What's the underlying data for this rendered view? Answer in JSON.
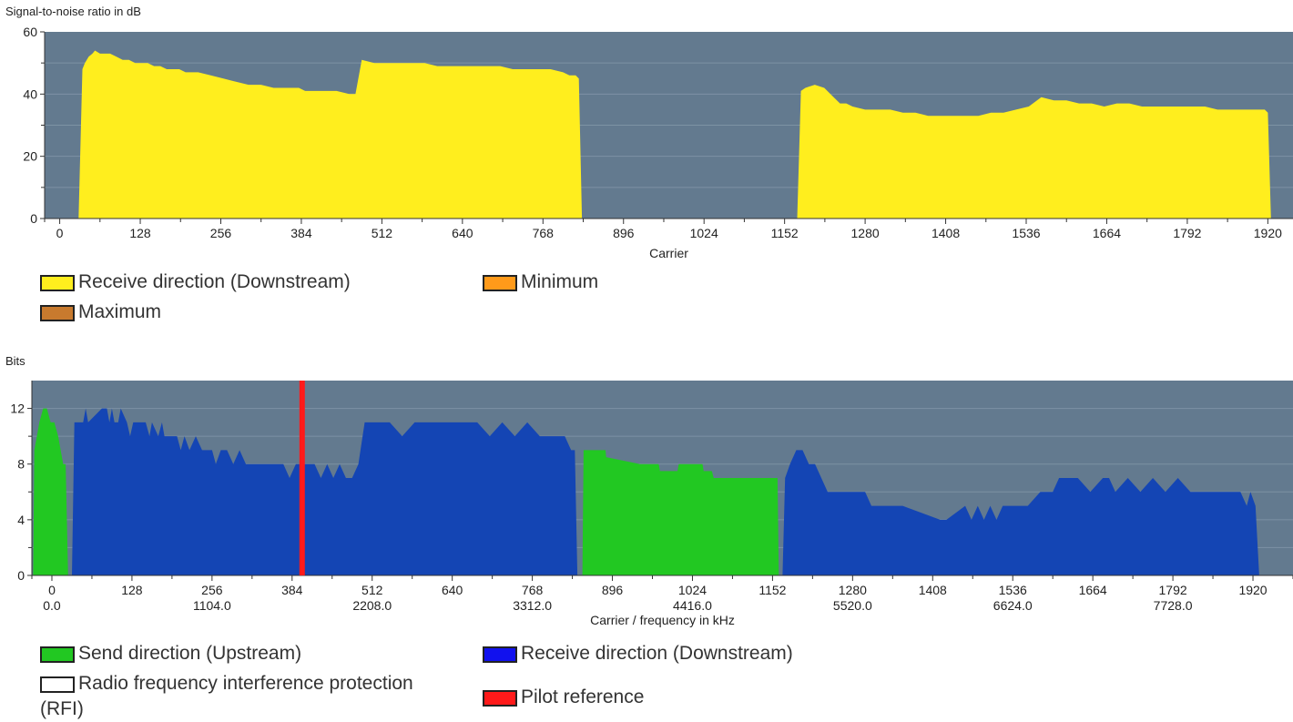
{
  "chart_data": [
    {
      "type": "area",
      "ylabel": "Signal-to-noise ratio in dB",
      "xlabel": "Carrier",
      "ylim": [
        0,
        60
      ],
      "xlim": [
        -24,
        1960
      ],
      "y_ticks": [
        0,
        20,
        40,
        60
      ],
      "x_ticks": [
        0,
        128,
        256,
        384,
        512,
        640,
        768,
        896,
        1024,
        1152,
        1280,
        1408,
        1536,
        1664,
        1792,
        1920
      ],
      "grid": true,
      "background": "#637a8f",
      "series": [
        {
          "name": "Receive direction (Downstream)",
          "color": "#ffee1e",
          "x": [
            30,
            36,
            40,
            46,
            52,
            56,
            64,
            80,
            90,
            100,
            110,
            120,
            130,
            140,
            150,
            160,
            170,
            180,
            190,
            200,
            220,
            240,
            260,
            280,
            300,
            320,
            340,
            360,
            380,
            390,
            400,
            410,
            420,
            440,
            460,
            470,
            480,
            500,
            520,
            540,
            560,
            580,
            600,
            620,
            640,
            660,
            680,
            700,
            720,
            740,
            760,
            780,
            800,
            810,
            820,
            825,
            830,
            1172,
            1178,
            1185,
            1200,
            1215,
            1230,
            1240,
            1250,
            1260,
            1280,
            1300,
            1320,
            1340,
            1360,
            1380,
            1400,
            1420,
            1440,
            1460,
            1480,
            1500,
            1520,
            1540,
            1560,
            1580,
            1600,
            1620,
            1640,
            1660,
            1680,
            1700,
            1720,
            1740,
            1760,
            1780,
            1800,
            1820,
            1840,
            1860,
            1880,
            1900,
            1915,
            1920,
            1925
          ],
          "y": [
            0,
            48,
            50,
            52,
            53,
            54,
            53,
            53,
            52,
            51,
            51,
            50,
            50,
            50,
            49,
            49,
            48,
            48,
            48,
            47,
            47,
            46,
            45,
            44,
            43,
            43,
            42,
            42,
            42,
            41,
            41,
            41,
            41,
            41,
            40,
            40,
            51,
            50,
            50,
            50,
            50,
            50,
            49,
            49,
            49,
            49,
            49,
            49,
            48,
            48,
            48,
            48,
            47,
            46,
            46,
            45,
            0,
            0,
            41,
            42,
            43,
            42,
            39,
            37,
            37,
            36,
            35,
            35,
            35,
            34,
            34,
            33,
            33,
            33,
            33,
            33,
            34,
            34,
            35,
            36,
            39,
            38,
            38,
            37,
            37,
            36,
            37,
            37,
            36,
            36,
            36,
            36,
            36,
            36,
            35,
            35,
            35,
            35,
            35,
            34,
            0
          ]
        },
        {
          "name": "Minimum",
          "color": "#ff9a1a",
          "x": [],
          "y": []
        },
        {
          "name": "Maximum",
          "color": "#c87a2e",
          "x": [],
          "y": []
        }
      ]
    },
    {
      "type": "area",
      "ylabel": "Bits",
      "xlabel": "Carrier / frequency in kHz",
      "ylim": [
        0,
        14
      ],
      "xlim": [
        -32,
        1984
      ],
      "y_ticks": [
        0,
        4,
        8,
        12
      ],
      "x_ticks": [
        0,
        128,
        256,
        384,
        512,
        640,
        768,
        896,
        1024,
        1152,
        1280,
        1408,
        1536,
        1664,
        1792,
        1920
      ],
      "freq_labels": {
        "0": "0.0",
        "256": "1104.0",
        "512": "2208.0",
        "768": "3312.0",
        "1024": "4416.0",
        "1280": "5520.0",
        "1536": "6624.0",
        "1792": "7728.0"
      },
      "grid": true,
      "background": "#637a8f",
      "series": [
        {
          "name": "Send direction (Upstream)",
          "color": "#22c822",
          "segments": [
            {
              "x": [
                -30,
                -28,
                -24,
                -20,
                -14,
                -8,
                -2,
                4,
                10,
                14,
                18,
                22,
                26
              ],
              "y": [
                0,
                9,
                10,
                11,
                12,
                12,
                11,
                11,
                10,
                9,
                8,
                8,
                0
              ]
            },
            {
              "x": [
                848,
                850,
                885,
                886,
                940,
                970,
                972,
                1000,
                1002,
                1020,
                1040,
                1042,
                1055,
                1058,
                1070,
                1160,
                1162
              ],
              "y": [
                0,
                9,
                9,
                8.5,
                8,
                8,
                7.5,
                7.5,
                8,
                8,
                8,
                7.5,
                7.5,
                7,
                7,
                7,
                0
              ]
            }
          ]
        },
        {
          "name": "Receive direction (Downstream)",
          "color": "#1445b4",
          "segments": [
            {
              "x": [
                32,
                36,
                50,
                54,
                58,
                80,
                84,
                88,
                92,
                96,
                100,
                106,
                110,
                120,
                125,
                130,
                140,
                150,
                156,
                160,
                170,
                176,
                180,
                190,
                200,
                206,
                212,
                220,
                230,
                240,
                250,
                256,
                262,
                270,
                280,
                290,
                300,
                310,
                320,
                330,
                340,
                360,
                370,
                380,
                390,
                400,
                410,
                420,
                430,
                440,
                450,
                460,
                470,
                480,
                490,
                500,
                510,
                520,
                530,
                540,
                560,
                580,
                600,
                620,
                640,
                660,
                680,
                700,
                720,
                740,
                760,
                780,
                800,
                810,
                820,
                830,
                836,
                840
              ],
              "y": [
                0,
                11,
                11,
                12,
                11,
                12,
                12,
                12,
                11,
                12,
                11,
                11,
                12,
                11,
                10,
                11,
                11,
                11,
                10,
                11,
                10,
                11,
                10,
                10,
                10,
                9,
                10,
                9,
                10,
                9,
                9,
                9,
                8,
                9,
                9,
                8,
                9,
                8,
                8,
                8,
                8,
                8,
                8,
                7,
                8,
                8,
                8,
                8,
                7,
                8,
                7,
                8,
                7,
                7,
                8,
                11,
                11,
                11,
                11,
                11,
                10,
                11,
                11,
                11,
                11,
                11,
                11,
                10,
                11,
                10,
                11,
                10,
                10,
                10,
                10,
                9,
                9,
                0
              ]
            },
            {
              "x": [
                1168,
                1172,
                1180,
                1190,
                1200,
                1210,
                1220,
                1240,
                1300,
                1310,
                1360,
                1420,
                1430,
                1460,
                1470,
                1480,
                1490,
                1500,
                1510,
                1520,
                1530,
                1540,
                1560,
                1580,
                1600,
                1610,
                1620,
                1640,
                1660,
                1680,
                1690,
                1700,
                1720,
                1740,
                1760,
                1780,
                1800,
                1820,
                1840,
                1860,
                1880,
                1900,
                1910,
                1916,
                1924,
                1930
              ],
              "y": [
                0,
                7,
                8,
                9,
                9,
                8,
                8,
                6,
                6,
                5,
                5,
                4,
                4,
                5,
                4,
                5,
                4,
                5,
                4,
                5,
                5,
                5,
                5,
                6,
                6,
                7,
                7,
                7,
                6,
                7,
                7,
                6,
                7,
                6,
                7,
                6,
                7,
                6,
                6,
                6,
                6,
                6,
                5,
                6,
                5,
                0
              ]
            }
          ]
        },
        {
          "name": "Radio frequency interference protection (RFI)",
          "color": "#ffffff",
          "x": [],
          "y": []
        },
        {
          "name": "Pilot reference",
          "color": "#ff1a1a",
          "x": [
            400
          ],
          "y": [
            14
          ]
        }
      ]
    }
  ]
}
